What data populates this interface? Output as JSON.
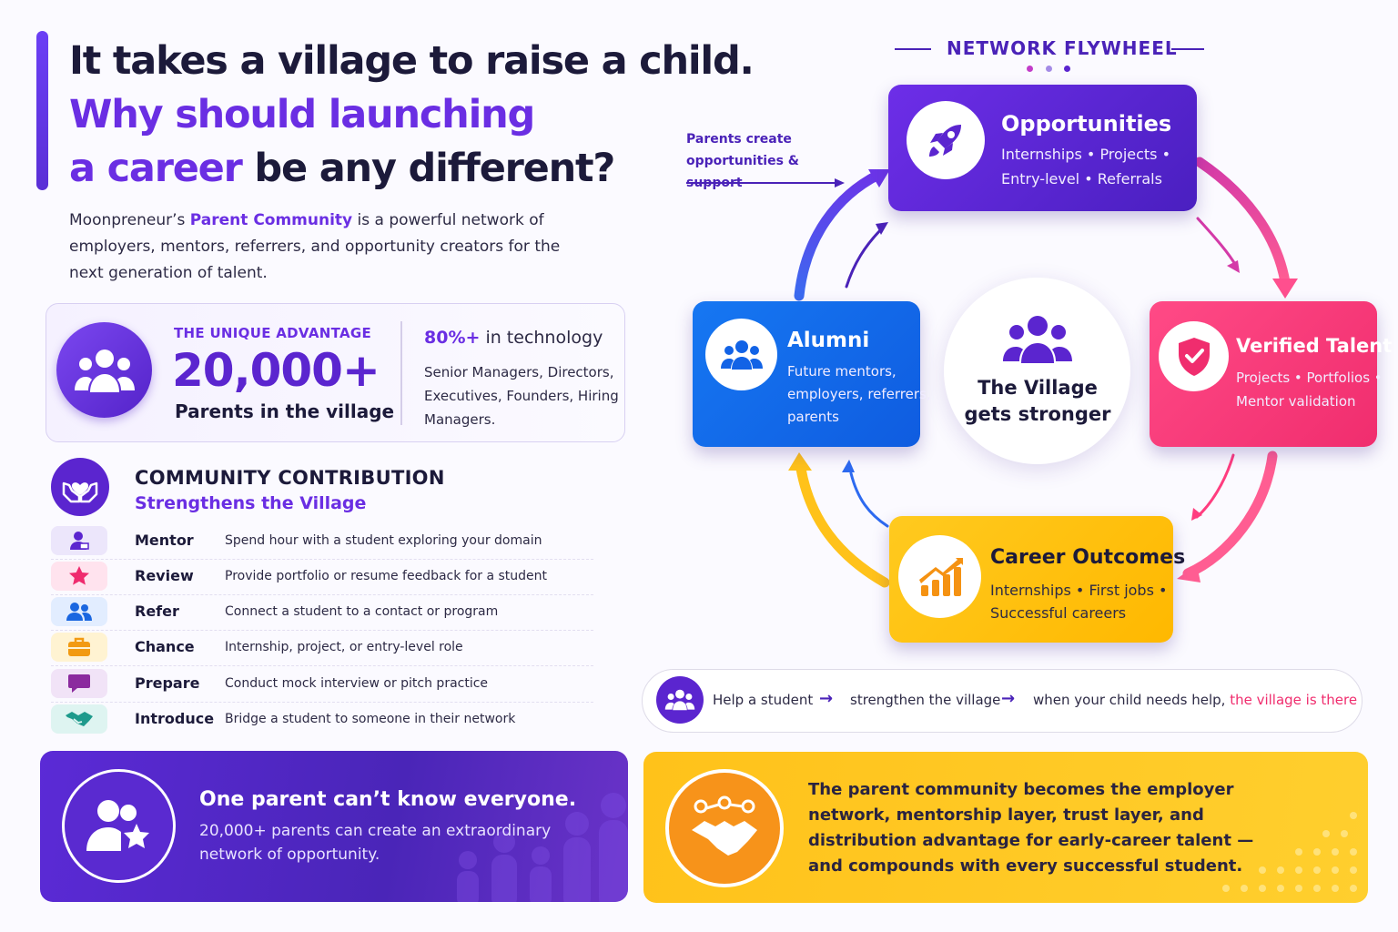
{
  "headline": {
    "line1": "It takes a village to raise a child.",
    "line2": "Why should launching",
    "line3_accent": "a career",
    "line3_rest": " be any different?"
  },
  "intro": {
    "pre": "Moonpreneur’s ",
    "highlight": "Parent Community",
    "post": " is a powerful network of employers, mentors, referrers, and opportunity creators for the next generation of talent."
  },
  "advantage": {
    "label": "THE UNIQUE ADVANTAGE",
    "number": "20,000+",
    "sub": "Parents in the village",
    "tech_pct": "80%+",
    "tech_rest": " in technology",
    "roles": "Senior Managers, Directors, Executives, Founders, Hiring Managers."
  },
  "contribution": {
    "title": "COMMUNITY CONTRIBUTION",
    "subtitle": "Strengthens the Village",
    "rows": [
      {
        "label": "Mentor",
        "desc": "Spend hour with a student exploring your domain",
        "icon": "mentor-icon",
        "bg": "#ece6fb",
        "fg": "#5b25cf"
      },
      {
        "label": "Review",
        "desc": "Provide portfolio or resume feedback for a student",
        "icon": "star-icon",
        "bg": "#ffe3ee",
        "fg": "#ef2b6e"
      },
      {
        "label": "Refer",
        "desc": "Connect a student to a contact or program",
        "icon": "people-icon",
        "bg": "#e2edff",
        "fg": "#1a66e0"
      },
      {
        "label": "Chance",
        "desc": "Internship, project, or entry-level role",
        "icon": "briefcase-icon",
        "bg": "#fff3d2",
        "fg": "#f29a12"
      },
      {
        "label": "Prepare",
        "desc": "Conduct mock interview or pitch practice",
        "icon": "chat-icon",
        "bg": "#f1e3f7",
        "fg": "#8b2a9e"
      },
      {
        "label": "Introduce",
        "desc": "Bridge a student to someone in their network",
        "icon": "handshake-icon",
        "bg": "#def4f1",
        "fg": "#1e9a8c"
      }
    ]
  },
  "bottom_purple": {
    "title": "One parent can’t know everyone.",
    "text": "20,000+ parents can create an extraordinary network of opportunity."
  },
  "bottom_yellow": {
    "text": "The parent community becomes the employer network, mentorship layer, trust layer, and distribution advantage for early-career talent — and compounds with every successful student."
  },
  "flywheel": {
    "title": "NETWORK FLYWHEEL",
    "parents_create": "Parents create opportunities & support",
    "center": "The Village gets stronger",
    "nodes": {
      "opportunities": {
        "title": "Opportunities",
        "line1": "Internships • Projects •",
        "line2": "Entry-level • Referrals"
      },
      "verified": {
        "title": "Verified Talent",
        "line1": "Projects • Portfolios •",
        "line2": "Mentor validation"
      },
      "career": {
        "title": "Career Outcomes",
        "line1": "Internships • First jobs •",
        "line2": "Successful careers"
      },
      "alumni": {
        "title": "Alumni",
        "line1": "Future mentors,",
        "line2": "employers, referrers,",
        "line3": "parents"
      }
    }
  },
  "journey": {
    "step1": "Help a student",
    "step2": "strengthen the village",
    "step3_pre": "when your child needs help, ",
    "step3_hl": "the village is there"
  },
  "colors": {
    "purple": "#5b25cf",
    "blue": "#1677f2",
    "pink": "#f02d6e",
    "yellow": "#ffc21a",
    "navy": "#1c1a3a"
  }
}
